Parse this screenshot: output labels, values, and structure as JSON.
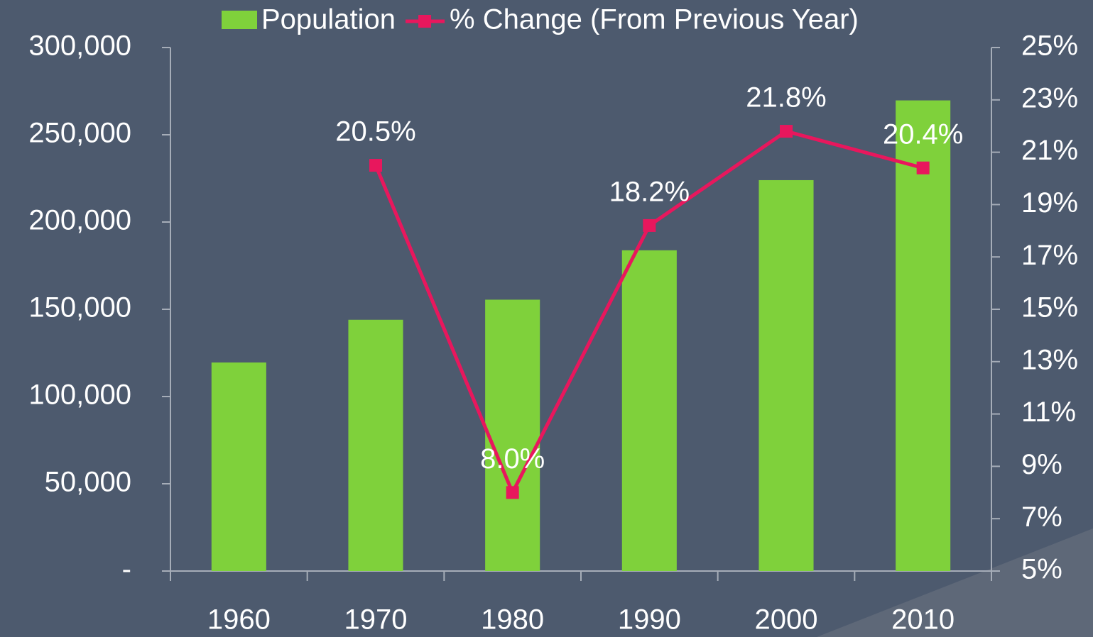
{
  "chart_data": {
    "type": "bar",
    "categories": [
      "1960",
      "1970",
      "1980",
      "1990",
      "2000",
      "2010"
    ],
    "series": [
      {
        "name": "Population",
        "type": "bar",
        "color": "#7fd13b",
        "values": [
          119500,
          144000,
          155500,
          183800,
          224000,
          269700
        ]
      },
      {
        "name": "% Change (From Previous Year)",
        "type": "line",
        "axis": "y2",
        "color": "#e8175d",
        "values": [
          null,
          20.5,
          8.0,
          18.2,
          21.8,
          20.4
        ],
        "value_labels": [
          null,
          "20.5%",
          "8.0%",
          "18.2%",
          "21.8%",
          "20.4%"
        ]
      }
    ],
    "ylim": [
      0,
      300000
    ],
    "yticks": [
      {
        "value": 0,
        "label": "-"
      },
      {
        "value": 50000,
        "label": "50,000"
      },
      {
        "value": 100000,
        "label": "100,000"
      },
      {
        "value": 150000,
        "label": "150,000"
      },
      {
        "value": 200000,
        "label": "200,000"
      },
      {
        "value": 250000,
        "label": "250,000"
      },
      {
        "value": 300000,
        "label": "300,000"
      }
    ],
    "y2lim": [
      5,
      25
    ],
    "y2ticks": [
      {
        "value": 5,
        "label": "5%"
      },
      {
        "value": 7,
        "label": "7%"
      },
      {
        "value": 9,
        "label": "9%"
      },
      {
        "value": 11,
        "label": "11%"
      },
      {
        "value": 13,
        "label": "13%"
      },
      {
        "value": 15,
        "label": "15%"
      },
      {
        "value": 17,
        "label": "17%"
      },
      {
        "value": 19,
        "label": "19%"
      },
      {
        "value": 21,
        "label": "21%"
      },
      {
        "value": 23,
        "label": "23%"
      },
      {
        "value": 25,
        "label": "25%"
      }
    ],
    "legend": "top"
  }
}
